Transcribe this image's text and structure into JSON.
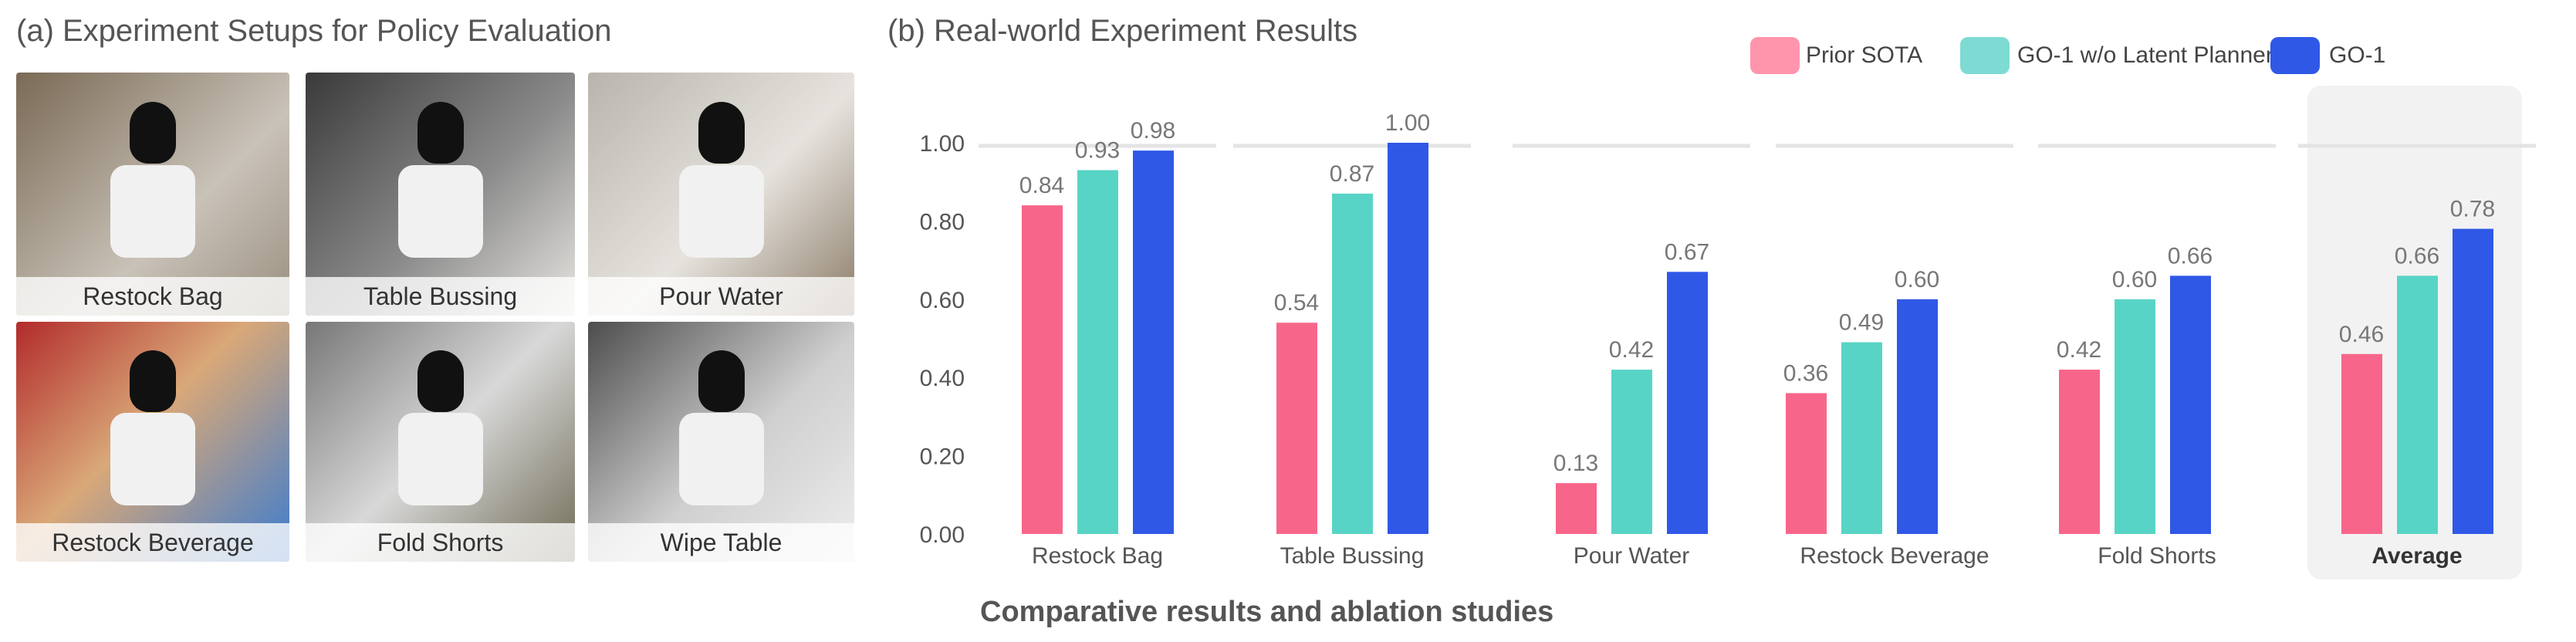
{
  "panel_a": {
    "title": "(a) Experiment Setups for Policy Evaluation",
    "photos": [
      {
        "label": "Restock Bag"
      },
      {
        "label": "Table Bussing"
      },
      {
        "label": "Pour Water"
      },
      {
        "label": "Restock Beverage"
      },
      {
        "label": "Fold Shorts"
      },
      {
        "label": "Wipe Table"
      }
    ]
  },
  "caption": "Comparative results and ablation studies",
  "colors": {
    "prior_sota": "#f7668a",
    "go1_no_planner": "#58d4c6",
    "go1": "#2f58e6",
    "highlight_bg": "#f2f2f2"
  },
  "chart_data": {
    "type": "bar",
    "title": "(b) Real-world Experiment Results",
    "categories": [
      "Restock Bag",
      "Table Bussing",
      "Pour Water",
      "Restock Beverage",
      "Fold Shorts",
      "Average"
    ],
    "highlighted_category": "Average",
    "series": [
      {
        "name": "Prior SOTA",
        "values": [
          0.84,
          0.54,
          0.13,
          0.36,
          0.42,
          0.46
        ]
      },
      {
        "name": "GO-1 w/o Latent Planner",
        "values": [
          0.93,
          0.87,
          0.42,
          0.49,
          0.6,
          0.66
        ]
      },
      {
        "name": "GO-1",
        "values": [
          0.98,
          1.0,
          0.67,
          0.6,
          0.66,
          0.78
        ]
      }
    ],
    "yticks": [
      "0.00",
      "0.20",
      "0.40",
      "0.60",
      "0.80",
      "1.00"
    ],
    "ylim": [
      0,
      1
    ],
    "legend_position": "top-right",
    "data_labels": true
  }
}
